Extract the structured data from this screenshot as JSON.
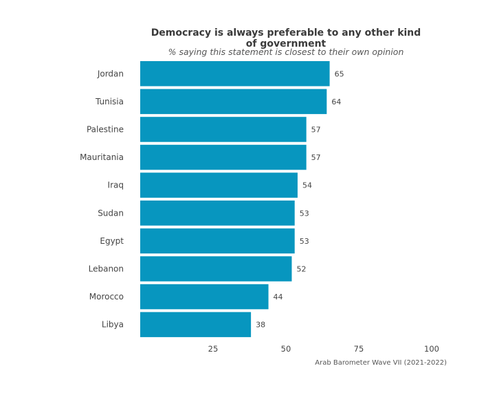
{
  "chart_data": {
    "type": "bar",
    "orientation": "horizontal",
    "title_lines": [
      "Democracy is always preferable to any other kind",
      "of government"
    ],
    "subtitle": "% saying this statement is closest to their own opinion",
    "caption": "Arab Barometer Wave VII (2021-2022)",
    "categories": [
      "Jordan",
      "Tunisia",
      "Palestine",
      "Mauritania",
      "Iraq",
      "Sudan",
      "Egypt",
      "Lebanon",
      "Morocco",
      "Libya"
    ],
    "values": [
      65,
      64,
      57,
      57,
      54,
      53,
      53,
      52,
      44,
      38
    ],
    "xlim": [
      0,
      100
    ],
    "xticks": [
      25,
      50,
      75,
      100
    ],
    "grid": false,
    "bar_color": "#0796bf"
  }
}
